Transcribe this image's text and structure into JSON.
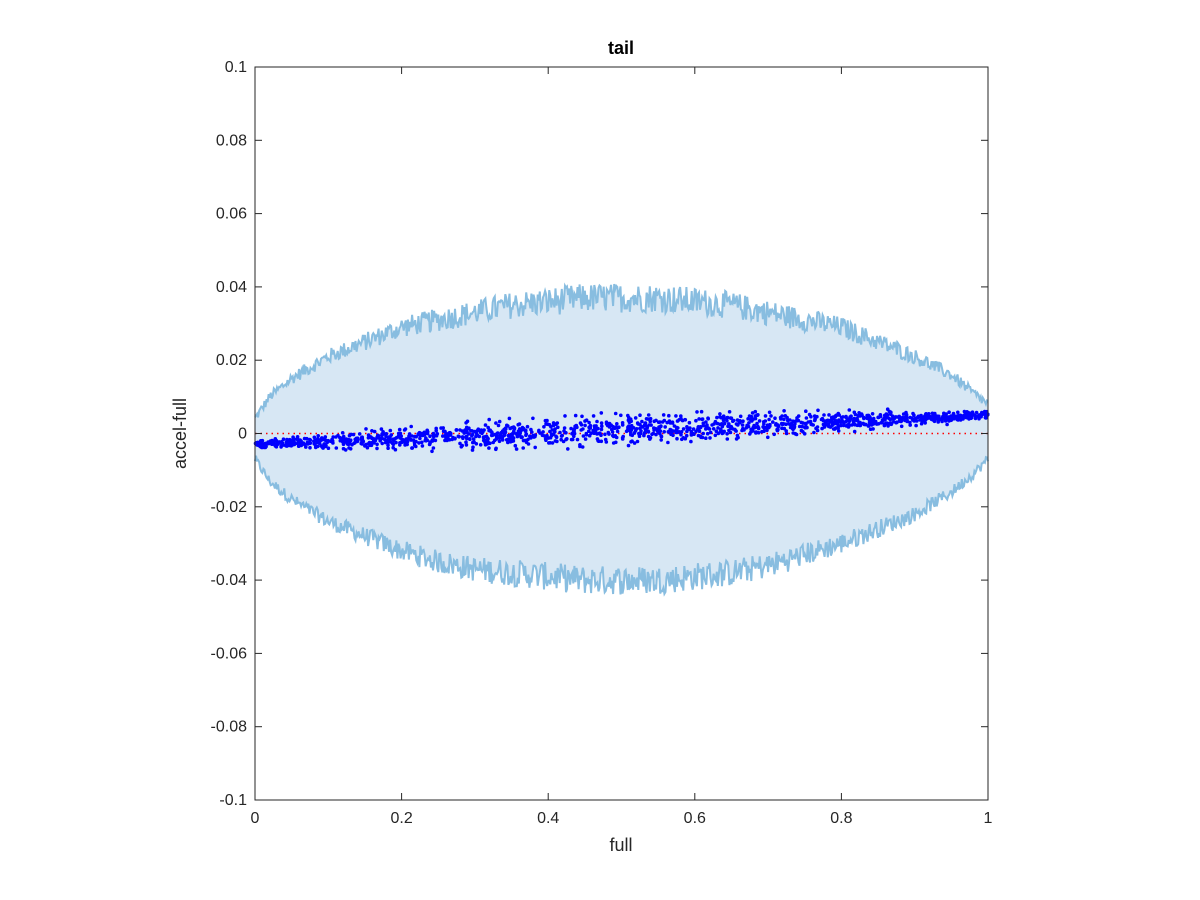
{
  "chart_data": {
    "type": "scatter",
    "title": "tail",
    "xlabel": "full",
    "ylabel": "accel-full",
    "xlim": [
      0,
      1
    ],
    "ylim": [
      -0.1,
      0.1
    ],
    "xticks": [
      "0",
      "0.2",
      "0.4",
      "0.6",
      "0.8",
      "1"
    ],
    "yticks": [
      "-0.1",
      "-0.08",
      "-0.06",
      "-0.04",
      "-0.02",
      "0",
      "0.02",
      "0.04",
      "0.06",
      "0.08",
      "0.1"
    ],
    "grid": false,
    "envelope": {
      "x": [
        0,
        0.02,
        0.05,
        0.1,
        0.15,
        0.2,
        0.25,
        0.3,
        0.35,
        0.4,
        0.45,
        0.5,
        0.55,
        0.6,
        0.65,
        0.7,
        0.75,
        0.8,
        0.85,
        0.9,
        0.95,
        0.98,
        1
      ],
      "upper": [
        0.004,
        0.01,
        0.015,
        0.021,
        0.025,
        0.029,
        0.031,
        0.033,
        0.035,
        0.036,
        0.037,
        0.037,
        0.037,
        0.036,
        0.035,
        0.033,
        0.031,
        0.029,
        0.025,
        0.021,
        0.016,
        0.011,
        0.008
      ],
      "lower": [
        -0.007,
        -0.013,
        -0.018,
        -0.024,
        -0.028,
        -0.032,
        -0.035,
        -0.037,
        -0.038,
        -0.039,
        -0.04,
        -0.04,
        -0.04,
        -0.039,
        -0.038,
        -0.036,
        -0.033,
        -0.03,
        -0.026,
        -0.022,
        -0.016,
        -0.011,
        -0.007
      ],
      "noise_amplitude": 0.004,
      "line_color": "#88bde0",
      "fill_color": "#d7e7f4"
    },
    "scatter": {
      "n_points": 1500,
      "trend_start": -0.003,
      "trend_end": 0.005,
      "spread_mid": 0.004,
      "spread_edge": 0.001,
      "color": "#0000ff"
    },
    "reference_line": {
      "y": 0,
      "color": "#ff0000"
    }
  }
}
